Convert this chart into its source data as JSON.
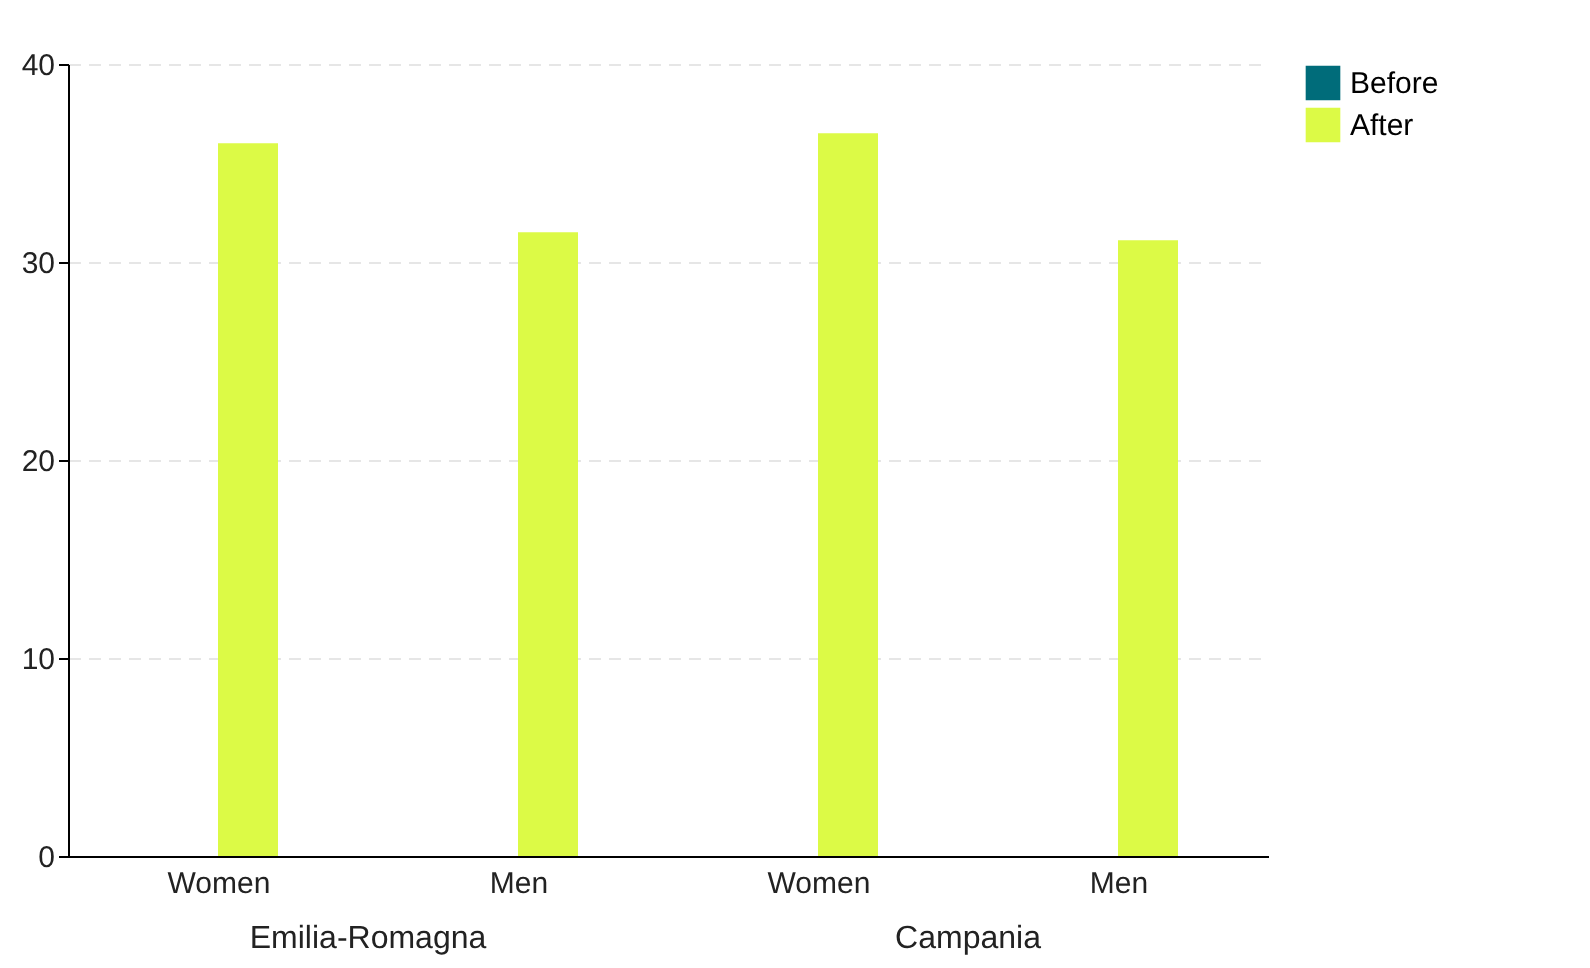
{
  "chart_data": {
    "type": "bar",
    "categories": [
      "Women",
      "Men",
      "Women",
      "Men"
    ],
    "series": [
      {
        "name": "Before",
        "color": "#006c7a",
        "values": [
          null,
          null,
          null,
          null
        ]
      },
      {
        "name": "After",
        "color": "#dcfa46",
        "values": [
          36,
          31.5,
          36.5,
          31.1
        ]
      }
    ],
    "annotations": [
      "Emilia-Romagna",
      "Campania"
    ],
    "ylim": [
      0,
      40
    ],
    "yticks": [
      0,
      10,
      20,
      30,
      40
    ],
    "grid": "y",
    "legend": "right"
  }
}
